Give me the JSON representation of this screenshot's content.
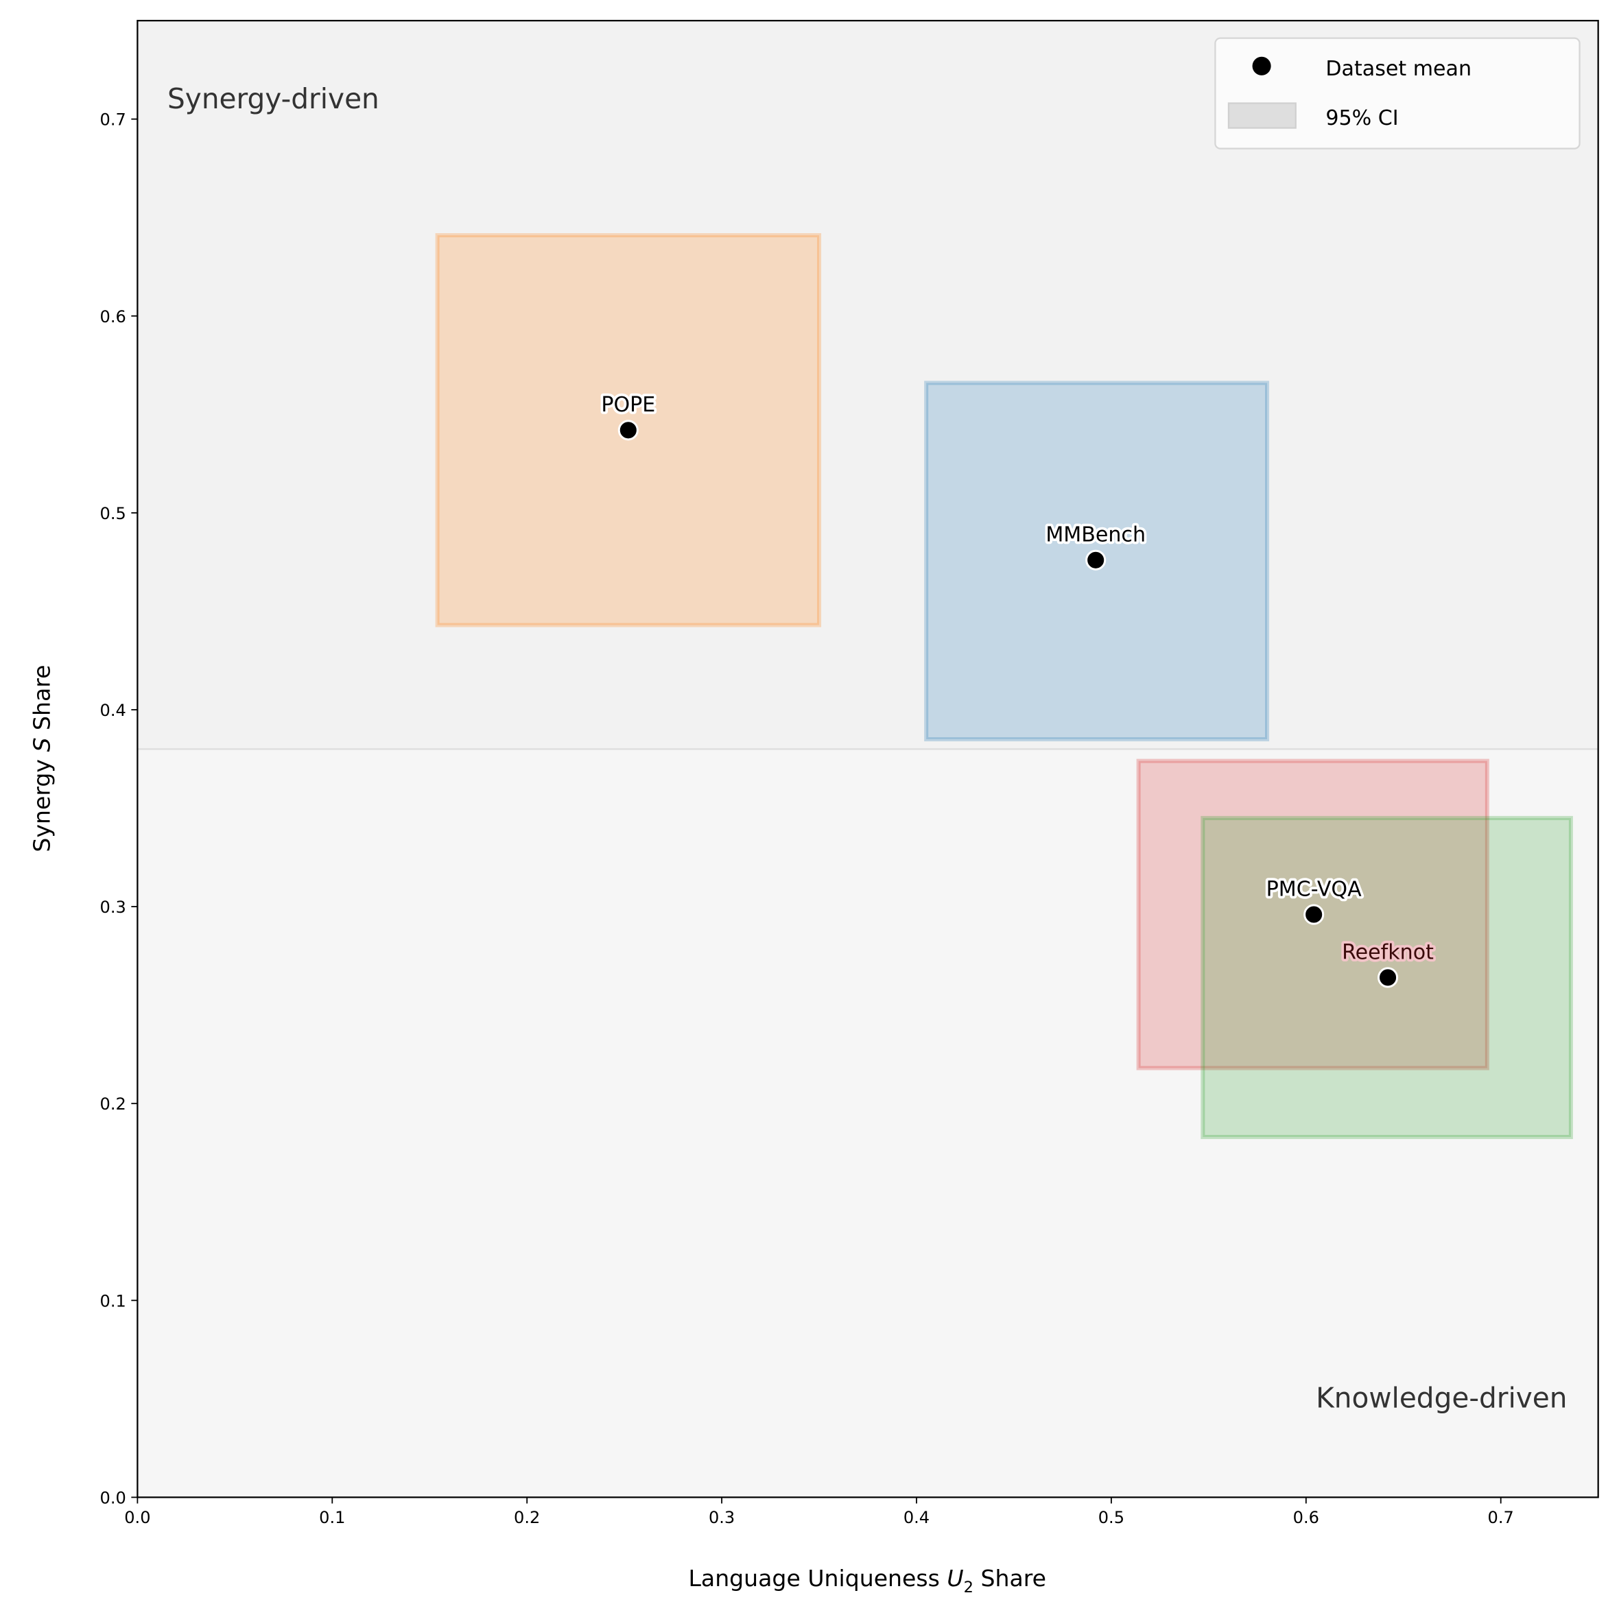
{
  "chart_data": {
    "type": "scatter",
    "xlabel": "Language Uniqueness U2 Share",
    "xlabel_parts": {
      "pre": "Language Uniqueness ",
      "var": "U",
      "sub": "2",
      "post": " Share"
    },
    "ylabel": "Synergy S Share",
    "ylabel_parts": {
      "pre": "Synergy ",
      "var": "S",
      "post": " Share"
    },
    "xlim": [
      0,
      0.75
    ],
    "ylim": [
      0,
      0.75
    ],
    "x_ticks": [
      "0.0",
      "0.1",
      "0.2",
      "0.3",
      "0.4",
      "0.5",
      "0.6",
      "0.7"
    ],
    "y_ticks": [
      "0.0",
      "0.1",
      "0.2",
      "0.3",
      "0.4",
      "0.5",
      "0.6",
      "0.7"
    ],
    "grid": false,
    "threshold_y": 0.38,
    "region_labels": {
      "top": "Synergy-driven",
      "bottom": "Knowledge-driven"
    },
    "region_colors": {
      "top": "#f2f2f2",
      "bottom": "#f6f6f6"
    },
    "legend": {
      "placement": "top-right",
      "entries": [
        {
          "label": "Dataset mean",
          "marker": "dot"
        },
        {
          "label": "95% CI",
          "marker": "box"
        }
      ]
    },
    "series": [
      {
        "name": "POPE",
        "color": "#ff7f0e",
        "label_color": "#000000",
        "halo": "#ffffff",
        "x": 0.252,
        "y": 0.542,
        "ci_x": [
          0.154,
          0.35
        ],
        "ci_y": [
          0.443,
          0.641
        ]
      },
      {
        "name": "MMBench",
        "color": "#1f77b4",
        "label_color": "#000000",
        "halo": "#ffffff",
        "x": 0.492,
        "y": 0.476,
        "ci_x": [
          0.405,
          0.58
        ],
        "ci_y": [
          0.385,
          0.566
        ]
      },
      {
        "name": "Reefknot",
        "color": "#d62728",
        "label_color": "#3a0a0a",
        "halo": "#f2c4c8",
        "x": 0.642,
        "y": 0.264,
        "ci_x": [
          0.514,
          0.693
        ],
        "ci_y": [
          0.218,
          0.374
        ]
      },
      {
        "name": "PMC-VQA",
        "color": "#2ca02c",
        "label_color": "#000000",
        "halo": "#ffffff",
        "x": 0.604,
        "y": 0.296,
        "ci_x": [
          0.547,
          0.736
        ],
        "ci_y": [
          0.183,
          0.345
        ]
      }
    ]
  }
}
